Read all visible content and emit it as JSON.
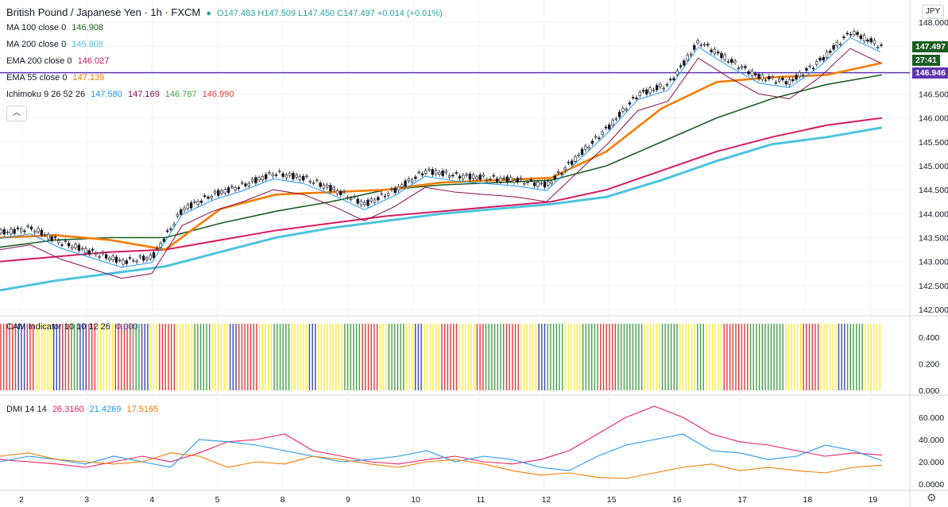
{
  "header": {
    "symbol": "British Pound / Japanese Yen · 1h · FXCM",
    "ohlc": "O147.483 H147.509 L147.450 C147.497 +0.014 (+0.01%)"
  },
  "indicators": [
    {
      "label": "MA 100 close 0",
      "value": "146.908",
      "color": "#1b5e20"
    },
    {
      "label": "MA 200 close 0",
      "value": "145.808",
      "color": "#4dc3de"
    },
    {
      "label": "EMA 200 close 0",
      "value": "146.027",
      "color": "#c2185b"
    },
    {
      "label": "EMA 55 close 0",
      "value": "147.139",
      "color": "#f57c00"
    }
  ],
  "ichimoku": {
    "label": "Ichimoku 9 26 52 26",
    "v1": "147.580",
    "v2": "147.169",
    "v3": "146.787",
    "v4": "146.990"
  },
  "cam": {
    "label": "CAM Indicator 10 10 12 26",
    "value": "0.000"
  },
  "dmi": {
    "label": "DMI 14 14",
    "v1": "26.3160",
    "v2": "21.4269",
    "v3": "17.5165"
  },
  "currency_button": "JPY",
  "price_tags": {
    "last": "147.497",
    "countdown": "27:41",
    "line": "146.946"
  },
  "colors": {
    "ma100": "#1b5e20",
    "ma200": "#4dc3de",
    "ema200": "#d81b60",
    "ema55": "#f57c00",
    "tenkan": "#2196f3",
    "kijun": "#880e4f",
    "cloud_up": "#a5d6a7",
    "cloud_dn": "#ef9a9a",
    "hline": "#5e35b1",
    "cam_colors": [
      "#e53935",
      "#3949ab",
      "#ffeb3b",
      "#43a047"
    ],
    "dmi_plus": "#e91e63",
    "dmi_minus": "#2196f3",
    "adx": "#f57c00"
  },
  "chart_data": [
    {
      "type": "line",
      "title": "British Pound / Japanese Yen · 1h · FXCM",
      "x_ticks": [
        "2",
        "3",
        "4",
        "5",
        "8",
        "9",
        "10",
        "11",
        "12",
        "15",
        "16",
        "17",
        "18",
        "19"
      ],
      "y_ticks": [
        "148.000",
        "147.500",
        "147.000",
        "146.500",
        "146.000",
        "145.500",
        "145.000",
        "144.500",
        "144.000",
        "143.500",
        "143.000",
        "142.500",
        "142.000"
      ],
      "ylim": [
        142.0,
        148.0
      ],
      "horizontal_line": 146.946,
      "series": [
        {
          "name": "MA 200 close 0",
          "values": [
            142.4,
            142.6,
            142.75,
            142.9,
            143.2,
            143.5,
            143.7,
            143.85,
            144.0,
            144.1,
            144.2,
            144.35,
            144.7,
            145.1,
            145.45,
            145.6,
            145.8
          ]
        },
        {
          "name": "EMA 200 close 0",
          "values": [
            143.0,
            143.1,
            143.2,
            143.25,
            143.45,
            143.65,
            143.8,
            143.95,
            144.05,
            144.15,
            144.25,
            144.5,
            144.9,
            145.3,
            145.6,
            145.85,
            146.0
          ]
        },
        {
          "name": "MA 100 close 0",
          "values": [
            143.3,
            143.45,
            143.5,
            143.5,
            143.8,
            144.05,
            144.25,
            144.5,
            144.6,
            144.65,
            144.7,
            145.0,
            145.5,
            146.0,
            146.4,
            146.7,
            146.9
          ]
        },
        {
          "name": "EMA 55 close 0",
          "values": [
            143.5,
            143.55,
            143.45,
            143.25,
            144.1,
            144.4,
            144.45,
            144.5,
            144.65,
            144.7,
            144.75,
            145.3,
            146.2,
            146.75,
            146.85,
            146.9,
            147.15
          ]
        }
      ],
      "price": [
        143.6,
        143.7,
        143.4,
        143.2,
        143.0,
        143.1,
        144.1,
        144.4,
        144.6,
        144.85,
        144.75,
        144.5,
        144.2,
        144.5,
        144.9,
        144.8,
        144.75,
        144.7,
        144.6,
        145.2,
        145.8,
        146.5,
        146.7,
        147.6,
        147.2,
        146.85,
        146.75,
        147.2,
        147.8,
        147.5
      ]
    },
    {
      "type": "bar",
      "title": "CAM Indicator 10 10 12 26",
      "y_ticks": [
        "0.400",
        "0.200",
        "0.000"
      ],
      "ylim": [
        0,
        0.5
      ],
      "bar_value": 0.5,
      "color_sequence": [
        0,
        0,
        1,
        0,
        2,
        2,
        1,
        0,
        3,
        1,
        0,
        2,
        2,
        0,
        0,
        3,
        1,
        2,
        0,
        0,
        2,
        2,
        3,
        3,
        2,
        2,
        1,
        0,
        0,
        2,
        2,
        3,
        3,
        2,
        2,
        1,
        2,
        2,
        2,
        3,
        3,
        0,
        0,
        2,
        3,
        3,
        2,
        1,
        2,
        2,
        0,
        0,
        2,
        2,
        0,
        3,
        3,
        0,
        0,
        2,
        2,
        1,
        3,
        3,
        2,
        2,
        3,
        3,
        0,
        0,
        3,
        3,
        3,
        2,
        2,
        3,
        3,
        2,
        2,
        3,
        2,
        2,
        0,
        0,
        0,
        3,
        3,
        3,
        3,
        2,
        2,
        0,
        0,
        2,
        2,
        1,
        3,
        3,
        2,
        2
      ]
    },
    {
      "type": "line",
      "title": "DMI 14 14",
      "y_ticks": [
        "60.000",
        "40.000",
        "20.000",
        "0.0000"
      ],
      "ylim": [
        0,
        70
      ],
      "series": [
        {
          "name": "DMI+",
          "values": [
            22,
            20,
            18,
            15,
            20,
            25,
            20,
            28,
            38,
            40,
            45,
            30,
            25,
            20,
            18,
            22,
            25,
            20,
            18,
            22,
            30,
            45,
            60,
            70,
            60,
            45,
            38,
            35,
            30,
            25,
            28,
            26
          ]
        },
        {
          "name": "DMI-",
          "values": [
            20,
            25,
            22,
            18,
            25,
            20,
            15,
            40,
            38,
            35,
            30,
            25,
            20,
            22,
            25,
            30,
            20,
            25,
            22,
            15,
            12,
            25,
            35,
            40,
            45,
            30,
            28,
            22,
            25,
            35,
            30,
            21
          ]
        },
        {
          "name": "ADX",
          "values": [
            25,
            28,
            22,
            20,
            18,
            20,
            28,
            25,
            15,
            20,
            18,
            25,
            22,
            18,
            15,
            20,
            22,
            18,
            12,
            8,
            10,
            6,
            5,
            10,
            15,
            18,
            12,
            15,
            12,
            10,
            15,
            17
          ]
        }
      ]
    }
  ]
}
